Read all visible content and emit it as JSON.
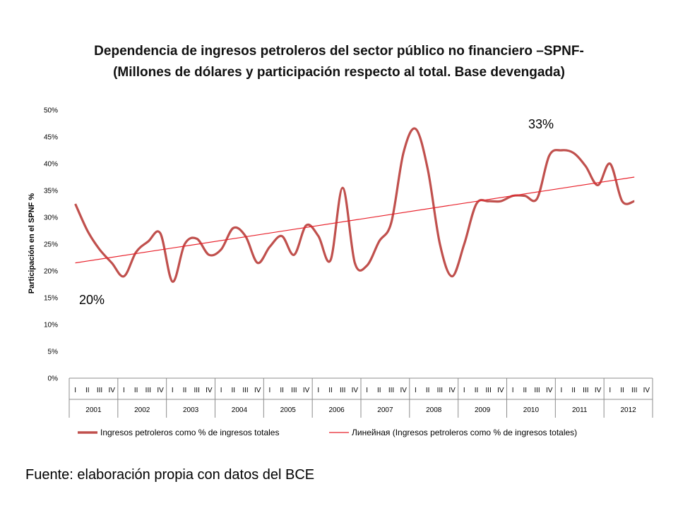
{
  "title": {
    "line1": "Dependencia de ingresos petroleros del sector público no financiero –SPNF-",
    "line2": "(Millones de dólares y participación respecto al total. Base devengada)"
  },
  "source": "Fuente: elaboración propia con datos del BCE",
  "chart_data": {
    "type": "line",
    "ylabel": "Participación en el SPNF %",
    "ylim": [
      0,
      50
    ],
    "yticks": [
      "0%",
      "5%",
      "10%",
      "15%",
      "20%",
      "25%",
      "30%",
      "35%",
      "40%",
      "45%",
      "50%"
    ],
    "quarters": [
      "I",
      "II",
      "III",
      "IV"
    ],
    "years": [
      "2001",
      "2002",
      "2003",
      "2004",
      "2005",
      "2006",
      "2007",
      "2008",
      "2009",
      "2010",
      "2011",
      "2012"
    ],
    "series": [
      {
        "name": "Ingresos petroleros como % de ingresos totales",
        "color": "#C0504D",
        "values": [
          32.5,
          27.5,
          24.0,
          21.5,
          19.0,
          23.5,
          25.5,
          27.0,
          18.0,
          25.0,
          26.0,
          23.0,
          24.0,
          28.0,
          26.5,
          21.5,
          24.5,
          26.5,
          23.0,
          28.5,
          26.5,
          22.0,
          35.5,
          21.5,
          21.0,
          25.5,
          29.0,
          42.0,
          46.5,
          39.0,
          25.0,
          19.0,
          25.0,
          32.5,
          33.0,
          33.0,
          34.0,
          34.0,
          33.5,
          41.5,
          42.5,
          42.0,
          39.5,
          36.0,
          40.0,
          33.0,
          33.0
        ]
      },
      {
        "name": "Линейная (Ingresos petroleros como % de ingresos totales)",
        "color": "#E8202A",
        "trend": [
          21.5,
          37.5
        ]
      }
    ],
    "annotations": [
      "20%",
      "33%"
    ],
    "legend_position": "bottom"
  }
}
